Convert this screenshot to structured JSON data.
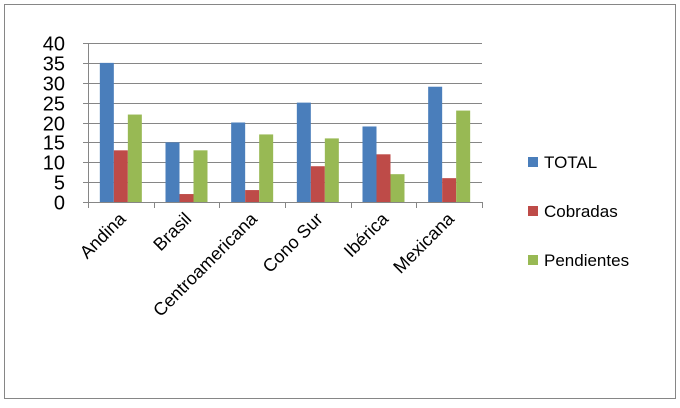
{
  "chart_data": {
    "type": "bar",
    "categories": [
      "Andina",
      "Brasil",
      "Centroamericana",
      "Cono Sur",
      "Ibérica",
      "Mexicana"
    ],
    "series": [
      {
        "name": "TOTAL",
        "values": [
          35,
          15,
          20,
          25,
          19,
          29
        ],
        "color": "#4a7ebb"
      },
      {
        "name": "Cobradas",
        "values": [
          13,
          2,
          3,
          9,
          12,
          6
        ],
        "color": "#be4b48"
      },
      {
        "name": "Pendientes",
        "values": [
          22,
          13,
          17,
          16,
          7,
          23
        ],
        "color": "#98b954"
      }
    ],
    "ylim": [
      0,
      40
    ],
    "yticks": [
      0,
      5,
      10,
      15,
      20,
      25,
      30,
      35,
      40
    ],
    "grid": true,
    "legend": "right",
    "title": "",
    "xlabel": "",
    "ylabel": ""
  }
}
